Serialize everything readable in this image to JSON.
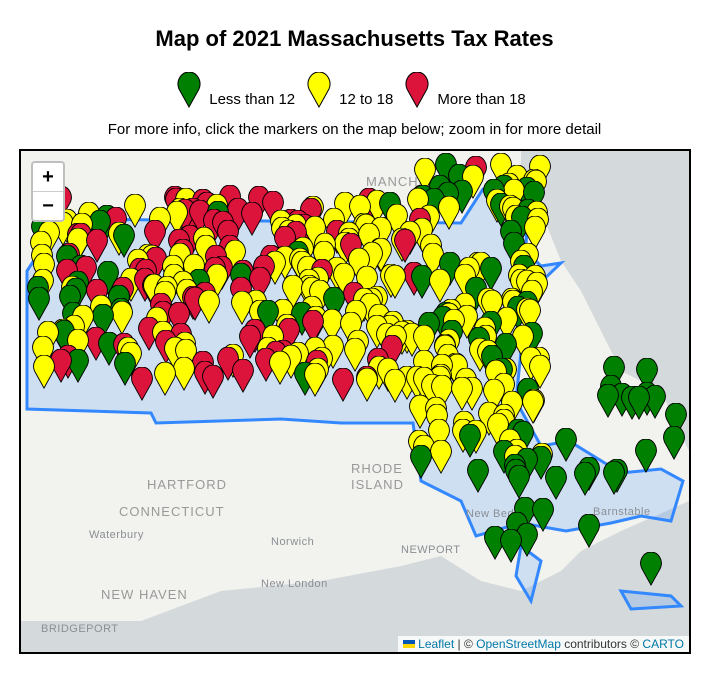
{
  "title": "Map of 2021 Massachusetts Tax Rates",
  "legend": [
    {
      "label": "Less than 12",
      "color": "#008000"
    },
    {
      "label": "12 to 18",
      "color": "#ffff00"
    },
    {
      "label": "More than 18",
      "color": "#dc143c"
    }
  ],
  "info": "For more info, click the markers on the map below; zoom in for more detail",
  "map": {
    "zoom_in": "+",
    "zoom_out": "−",
    "labels": {
      "manchester": "MANCHESTER",
      "hartford": "HARTFORD",
      "connecticut": "CONNECTICUT",
      "waterbury": "Waterbury",
      "norwich": "Norwich",
      "newport": "NEWPORT",
      "new_london": "New London",
      "new_haven": "NEW HAVEN",
      "bridgeport": "BRIDGEPORT",
      "rhode": "RHODE",
      "island": "ISLAND",
      "barnstable": "Barnstable",
      "new_bedford": "New Bedford"
    },
    "attribution": {
      "leaflet": "Leaflet",
      "sep": " | © ",
      "osm": "OpenStreetMap",
      "contrib": " contributors © ",
      "carto": "CARTO"
    }
  }
}
